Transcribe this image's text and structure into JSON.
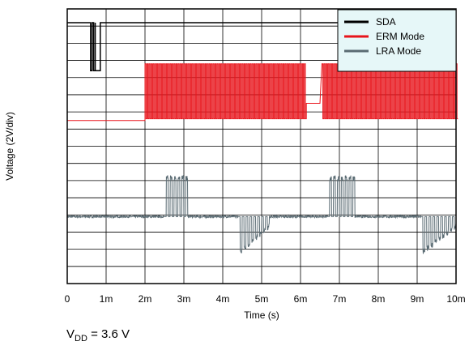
{
  "chart_data": {
    "type": "line",
    "xlabel": "Time (s)",
    "ylabel": "Voltage (2V/div)",
    "x_ticks": [
      "0",
      "1m",
      "2m",
      "3m",
      "4m",
      "5m",
      "6m",
      "7m",
      "8m",
      "9m",
      "10m"
    ],
    "xlim": [
      0,
      0.01
    ],
    "y_divisions": 16,
    "grid": true,
    "legend_position": "top-right",
    "series": [
      {
        "name": "SDA",
        "color": "#000000",
        "baseline_div": 12.4,
        "high_div": 15.2,
        "bursts": [
          [
            0.0006,
            0.0009
          ]
        ]
      },
      {
        "name": "ERM Mode",
        "color": "#e8141b",
        "baseline_div": 9.5,
        "low_div": 9.5,
        "high_div": 12.8,
        "active_from": 0.002,
        "active_to": 0.01,
        "gaps": [
          [
            0.0061,
            0.0065
          ]
        ]
      },
      {
        "name": "LRA Mode",
        "color": "#5a6b73",
        "baseline_div": 3.9,
        "high_div": 6.3,
        "low_div": 1.6,
        "bursts_up": [
          [
            0.0025,
            0.0031
          ],
          [
            0.0067,
            0.0074
          ]
        ],
        "bursts_down": [
          [
            0.0044,
            0.0052
          ],
          [
            0.0091,
            0.01
          ]
        ]
      }
    ]
  },
  "footer": {
    "vdd_prefix": "V",
    "vdd_sub": "DD",
    "vdd_value": " = 3.6 V"
  }
}
